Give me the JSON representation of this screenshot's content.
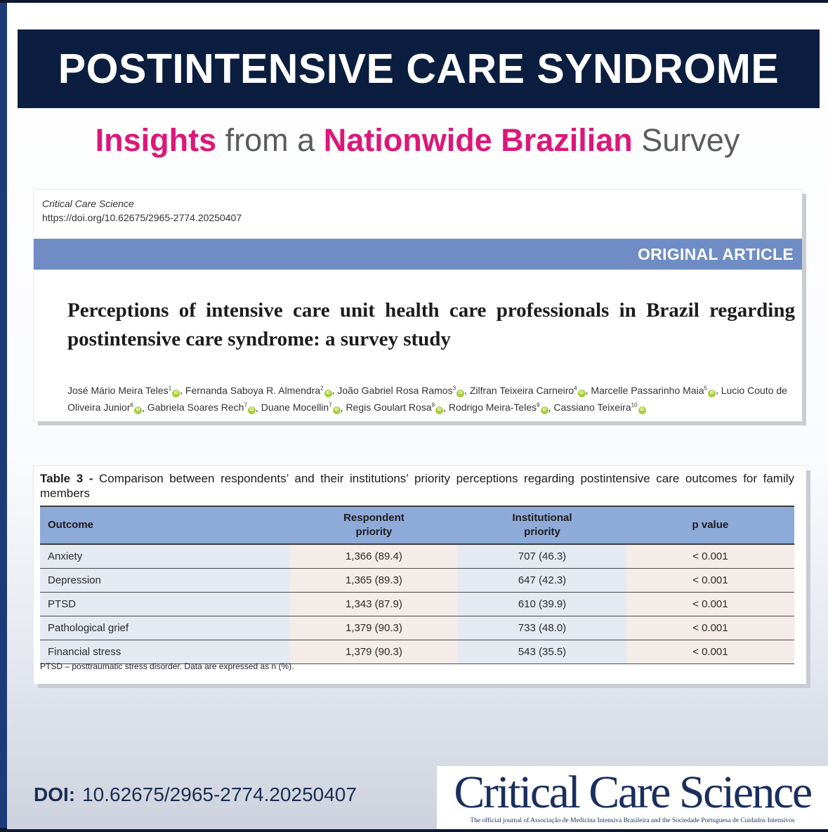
{
  "banner": {
    "title": "POSTINTENSIVE CARE SYNDROME"
  },
  "subtitle": {
    "part1": "Insights",
    "part2": " from a ",
    "part3": "Nationwide Brazilian",
    "part4": " Survey"
  },
  "article": {
    "journal": "Critical Care Science",
    "doi_url": "https://doi.org/10.62675/2965-2774.20250407",
    "type": "ORIGINAL ARTICLE",
    "title": "Perceptions of intensive care unit health care professionals in Brazil regarding postintensive care syndrome: a survey study",
    "authors": [
      {
        "name": "José Mário Meira Teles",
        "sup": "1"
      },
      {
        "name": "Fernanda Saboya R. Almendra",
        "sup": "2"
      },
      {
        "name": "João Gabriel Rosa Ramos",
        "sup": "3"
      },
      {
        "name": "Zilfran Teixeira Carneiro",
        "sup": "4"
      },
      {
        "name": "Marcelle Passarinho Maia",
        "sup": "5"
      },
      {
        "name": "Lucio Couto de Oliveira Junior",
        "sup": "6"
      },
      {
        "name": "Gabriela Soares Rech",
        "sup": "7"
      },
      {
        "name": "Duane Mocellin",
        "sup": "7"
      },
      {
        "name": "Regis Goulart Rosa",
        "sup": "8"
      },
      {
        "name": "Rodrigo Meira-Teles",
        "sup": "9"
      },
      {
        "name": "Cassiano Teixeira",
        "sup": "10"
      }
    ],
    "orcid_icon": "orcid-icon",
    "orcid_label": "iD"
  },
  "table": {
    "label": "Table 3 -",
    "caption": "Comparison between respondents’ and their institutions’ priority perceptions regarding postintensive care outcomes for family members",
    "headers": {
      "outcome": "Outcome",
      "respondent_line1": "Respondent",
      "respondent_line2": "priority",
      "institutional_line1": "Institutional",
      "institutional_line2": "priority",
      "p_value": "p value"
    },
    "rows": [
      {
        "outcome": "Anxiety",
        "respondent": "1,366 (89.4)",
        "institutional": "707 (46.3)",
        "p": "< 0.001"
      },
      {
        "outcome": "Depression",
        "respondent": "1,365 (89.3)",
        "institutional": "647 (42.3)",
        "p": "< 0.001"
      },
      {
        "outcome": "PTSD",
        "respondent": "1,343 (87.9)",
        "institutional": "610 (39.9)",
        "p": "< 0.001"
      },
      {
        "outcome": "Pathological grief",
        "respondent": "1,379 (90.3)",
        "institutional": "733 (48.0)",
        "p": "< 0.001"
      },
      {
        "outcome": "Financial stress",
        "respondent": "1,379 (90.3)",
        "institutional": "543 (35.5)",
        "p": "< 0.001"
      }
    ],
    "footnote": "PTSD – posttraumatic stress disorder. Data are expressed as n (%)."
  },
  "footer": {
    "doi_label": "DOI:",
    "doi_value": "10.62675/2965-2774.20250407",
    "brand_name": "Critical Care Science",
    "brand_tagline": "The official journal of Associação de Medicina Intensiva Brasileira and the Sociedade Portuguesa de Cuidados Intensivos"
  },
  "colors": {
    "banner_bg": "#0b1e3f",
    "accent_pink": "#dc1779",
    "article_band": "#6f8dc4",
    "table_header": "#8eaad8",
    "brand_navy": "#1a2f5e",
    "orcid_green": "#a6ce39"
  }
}
